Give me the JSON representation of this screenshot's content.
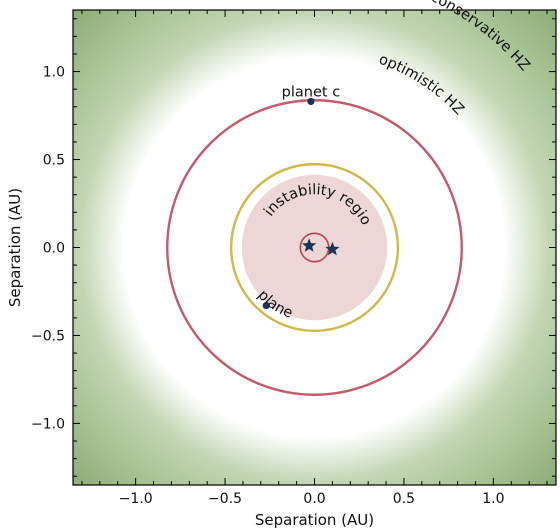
{
  "chart_data": {
    "type": "scatter",
    "xlabel": "Separation (AU)",
    "ylabel": "Separation (AU)",
    "xlim": [
      -1.35,
      1.35
    ],
    "ylim": [
      -1.35,
      1.35
    ],
    "x_ticks": [
      -1.0,
      -0.5,
      0.0,
      0.5,
      1.0
    ],
    "y_ticks": [
      -1.0,
      -0.5,
      0.0,
      0.5,
      1.0
    ],
    "x_tick_labels": [
      "−1.0",
      "−0.5",
      "0.0",
      "0.5",
      "1.0"
    ],
    "y_tick_labels": [
      "−1.0",
      "−0.5",
      "0.0",
      "0.5",
      "1.0"
    ],
    "grid": false,
    "habitable_zone": {
      "optimistic_label": "optimistic HZ",
      "conservative_label": "conservative HZ",
      "optimistic_inner_radius": 1.07,
      "conservative_inner_radius": 1.32,
      "colors": {
        "inner": "#ffffff",
        "mid": "#c3d7b4",
        "outer": "#5f8c45"
      }
    },
    "instability_region": {
      "label": "instability region",
      "radius": 0.41,
      "color": "#ecd6d6"
    },
    "orbits": [
      {
        "name": "binary orbit",
        "radius": 0.08,
        "color": "#b04450"
      },
      {
        "name": "stability limit",
        "radius": 0.47,
        "color": "#d2b84b"
      },
      {
        "name": "planet c orbit",
        "radius": 0.83,
        "color": "#c45a6b"
      }
    ],
    "stars": [
      {
        "x": -0.03,
        "y": 0.01
      },
      {
        "x": 0.1,
        "y": -0.01
      }
    ],
    "planets": [
      {
        "label": "planet c",
        "x": -0.02,
        "y": 0.83
      },
      {
        "label": "planet b",
        "x": -0.27,
        "y": -0.33
      }
    ],
    "marker_color": "#1a3558"
  }
}
